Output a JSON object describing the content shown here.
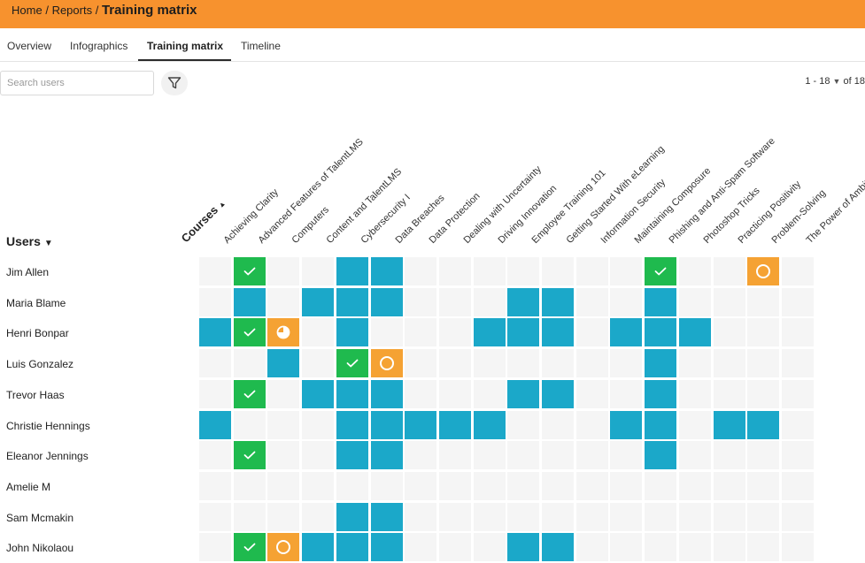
{
  "breadcrumb": {
    "home": "Home",
    "reports": "Reports",
    "sep": "/",
    "current": "Training matrix"
  },
  "tabs": [
    {
      "label": "Overview"
    },
    {
      "label": "Infographics"
    },
    {
      "label": "Training matrix",
      "active": true
    },
    {
      "label": "Timeline"
    }
  ],
  "search": {
    "placeholder": "Search users",
    "value": ""
  },
  "filter": {
    "icon": "filter-icon"
  },
  "pager": {
    "range": "1 - 18",
    "of_text": "of 18"
  },
  "users_header": "Users",
  "courses_header": "Courses",
  "colors": {
    "topbar": "#f7922e",
    "completed": "#1fba4e",
    "enrolled": "#1ba8c9",
    "in_progress": "#f5a233",
    "empty": "#f5f5f5"
  },
  "courses": [
    "Achieving Clarity",
    "Advanced Features of TalentLMS",
    "Computers",
    "Content and TalentLMS",
    "Cybersecurity I",
    "Data Breaches",
    "Data Protection",
    "Dealing with Uncertainty",
    "Driving Innovation",
    "Employee Training 101",
    "Getting Started With eLearning",
    "Information Security",
    "Maintaining Composure",
    "Phishing and Anti-Spam Software",
    "Photoshop Tricks",
    "Practicing Positivity",
    "Problem-Solving",
    "The Power of Ambition"
  ],
  "status_legend": {
    "0": "none",
    "1": "enrolled",
    "2": "completed",
    "3": "in-progress",
    "4": "not-started"
  },
  "users": [
    {
      "name": "Jim Allen",
      "cells": [
        0,
        2,
        0,
        0,
        1,
        1,
        0,
        0,
        0,
        0,
        0,
        0,
        0,
        2,
        0,
        0,
        4,
        0
      ]
    },
    {
      "name": "Maria Blame",
      "cells": [
        0,
        1,
        0,
        1,
        1,
        1,
        0,
        0,
        0,
        1,
        1,
        0,
        0,
        1,
        0,
        0,
        0,
        0
      ]
    },
    {
      "name": "Henri Bonpar",
      "cells": [
        1,
        2,
        3,
        0,
        1,
        0,
        0,
        0,
        1,
        1,
        1,
        0,
        1,
        1,
        1,
        0,
        0,
        0
      ]
    },
    {
      "name": "Luis Gonzalez",
      "cells": [
        0,
        0,
        1,
        0,
        2,
        4,
        0,
        0,
        0,
        0,
        0,
        0,
        0,
        1,
        0,
        0,
        0,
        0
      ]
    },
    {
      "name": "Trevor Haas",
      "cells": [
        0,
        2,
        0,
        1,
        1,
        1,
        0,
        0,
        0,
        1,
        1,
        0,
        0,
        1,
        0,
        0,
        0,
        0
      ]
    },
    {
      "name": "Christie Hennings",
      "cells": [
        1,
        0,
        0,
        0,
        1,
        1,
        1,
        1,
        1,
        0,
        0,
        0,
        1,
        1,
        0,
        1,
        1,
        0
      ]
    },
    {
      "name": "Eleanor Jennings",
      "cells": [
        0,
        2,
        0,
        0,
        1,
        1,
        0,
        0,
        0,
        0,
        0,
        0,
        0,
        1,
        0,
        0,
        0,
        0
      ]
    },
    {
      "name": "Amelie M",
      "cells": [
        0,
        0,
        0,
        0,
        0,
        0,
        0,
        0,
        0,
        0,
        0,
        0,
        0,
        0,
        0,
        0,
        0,
        0
      ]
    },
    {
      "name": "Sam Mcmakin",
      "cells": [
        0,
        0,
        0,
        0,
        1,
        1,
        0,
        0,
        0,
        0,
        0,
        0,
        0,
        0,
        0,
        0,
        0,
        0
      ]
    },
    {
      "name": "John Nikolaou",
      "cells": [
        0,
        2,
        4,
        1,
        1,
        1,
        0,
        0,
        0,
        1,
        1,
        0,
        0,
        0,
        0,
        0,
        0,
        0
      ]
    }
  ]
}
